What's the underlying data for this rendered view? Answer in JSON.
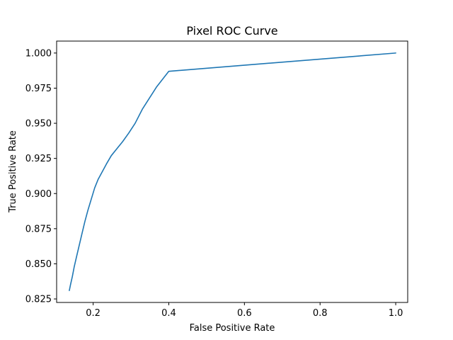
{
  "chart_data": {
    "type": "line",
    "title": "Pixel ROC Curve",
    "xlabel": "False Positive Rate",
    "ylabel": "True Positive Rate",
    "xlim": [
      0.1034,
      1.0317
    ],
    "ylim": [
      0.8225,
      1.0085
    ],
    "xticks": [
      {
        "value": 0.2,
        "label": "0.2"
      },
      {
        "value": 0.4,
        "label": "0.4"
      },
      {
        "value": 0.6,
        "label": "0.6"
      },
      {
        "value": 0.8,
        "label": "0.8"
      },
      {
        "value": 1.0,
        "label": "1.0"
      }
    ],
    "yticks": [
      {
        "value": 0.825,
        "label": "0.825"
      },
      {
        "value": 0.85,
        "label": "0.850"
      },
      {
        "value": 0.875,
        "label": "0.875"
      },
      {
        "value": 0.9,
        "label": "0.900"
      },
      {
        "value": 0.925,
        "label": "0.925"
      },
      {
        "value": 0.95,
        "label": "0.950"
      },
      {
        "value": 0.975,
        "label": "0.975"
      },
      {
        "value": 1.0,
        "label": "1.000"
      }
    ],
    "grid": false,
    "colors": {
      "line": "#1f77b4"
    },
    "series": [
      {
        "x": [
          0.137,
          0.14,
          0.145,
          0.15,
          0.156,
          0.163,
          0.17,
          0.178,
          0.186,
          0.195,
          0.204,
          0.213,
          0.223,
          0.235,
          0.248,
          0.263,
          0.278,
          0.294,
          0.311,
          0.33,
          0.349,
          0.368,
          0.4,
          1.0
        ],
        "y": [
          0.831,
          0.835,
          0.841,
          0.848,
          0.855,
          0.863,
          0.871,
          0.88,
          0.888,
          0.896,
          0.904,
          0.91,
          0.915,
          0.921,
          0.927,
          0.932,
          0.937,
          0.943,
          0.95,
          0.96,
          0.968,
          0.976,
          0.987,
          1.0
        ]
      }
    ]
  }
}
